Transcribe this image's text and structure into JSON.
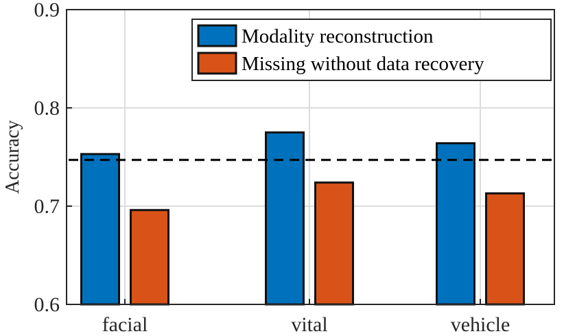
{
  "chart_data": {
    "type": "bar",
    "categories": [
      "facial",
      "vital",
      "vehicle"
    ],
    "series": [
      {
        "name": "Modality reconstruction",
        "color": "#0072BD",
        "values": [
          0.753,
          0.775,
          0.764
        ]
      },
      {
        "name": "Missing without data recovery",
        "color": "#D95319",
        "values": [
          0.696,
          0.724,
          0.713
        ]
      }
    ],
    "reference_line": {
      "value": 0.747,
      "style": "dashed"
    },
    "ylabel": "Accuracy",
    "ylim": [
      0.6,
      0.9
    ],
    "yticks": [
      "0.6",
      "0.7",
      "0.8",
      "0.9"
    ],
    "grid": true,
    "legend_position": "top-right"
  }
}
